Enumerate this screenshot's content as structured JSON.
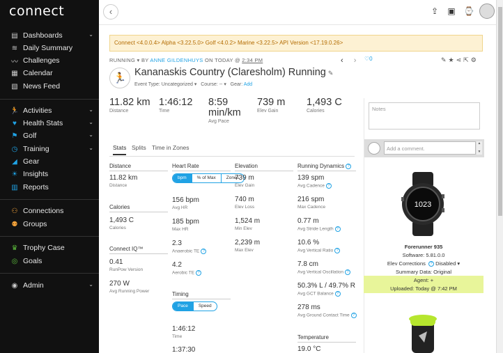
{
  "app": {
    "logo": "connect"
  },
  "sidebar": {
    "groups": [
      [
        {
          "label": "Dashboards",
          "icon": "dashboard-icon",
          "chevron": true
        },
        {
          "label": "Daily Summary",
          "icon": "layers-icon",
          "chevron": false
        },
        {
          "label": "Challenges",
          "icon": "challenges-icon",
          "chevron": false
        },
        {
          "label": "Calendar",
          "icon": "calendar-icon",
          "chevron": false
        },
        {
          "label": "News Feed",
          "icon": "news-icon",
          "chevron": false
        }
      ],
      [
        {
          "label": "Activities",
          "icon": "runner-icon",
          "chevron": true
        },
        {
          "label": "Health Stats",
          "icon": "heart-icon",
          "chevron": true
        },
        {
          "label": "Golf",
          "icon": "golf-flag-icon",
          "chevron": true
        },
        {
          "label": "Training",
          "icon": "stopwatch-icon",
          "chevron": true
        },
        {
          "label": "Gear",
          "icon": "shoe-icon",
          "chevron": false
        },
        {
          "label": "Insights",
          "icon": "bulb-icon",
          "chevron": false
        },
        {
          "label": "Reports",
          "icon": "bar-chart-icon",
          "chevron": false
        }
      ],
      [
        {
          "label": "Connections",
          "icon": "connections-icon",
          "chevron": false
        },
        {
          "label": "Groups",
          "icon": "groups-icon",
          "chevron": false
        }
      ],
      [
        {
          "label": "Trophy Case",
          "icon": "trophy-icon",
          "chevron": false
        },
        {
          "label": "Goals",
          "icon": "goals-icon",
          "chevron": false
        }
      ],
      [
        {
          "label": "Admin",
          "icon": "eye-icon",
          "chevron": true
        }
      ]
    ]
  },
  "banner": {
    "text": "Connect <4.0.0.4> Alpha <3.22.5.0> Golf <4.0.2> Marine <3.22.5> API Version <17.19.0.26>"
  },
  "activity": {
    "type": "RUNNING",
    "by": "BY",
    "author": "ANNE GILDENHUYS",
    "date": "ON TODAY @",
    "time": "2:34 PM",
    "title": "Kananaskis Country (Claresholm) Running",
    "event_label": "Event Type:",
    "event_value": "Uncategorized",
    "course_label": "Course:",
    "course_value": "--",
    "gear_label": "Gear:",
    "gear_value": "Add",
    "likes": "0",
    "prev": "‹",
    "next": "›"
  },
  "summary": [
    {
      "value": "11.82 km",
      "label": "Distance"
    },
    {
      "value": "1:46:12",
      "label": "Time"
    },
    {
      "value": "8:59 min/km",
      "label": "Avg Pace"
    },
    {
      "value": "739 m",
      "label": "Elev Gain"
    },
    {
      "value": "1,493 C",
      "label": "Calories"
    }
  ],
  "tabs": [
    "Stats",
    "Splits",
    "Time in Zones"
  ],
  "sections": {
    "distance": {
      "title": "Distance",
      "stats": [
        {
          "value": "11.82 km",
          "label": "Distance"
        }
      ]
    },
    "calories": {
      "title": "Calories",
      "stats": [
        {
          "value": "1,493 C",
          "label": "Calories"
        }
      ]
    },
    "connect_iq": {
      "title": "Connect IQ™",
      "stats": [
        {
          "value": "0.41",
          "label": "RunPow Version"
        },
        {
          "value": "270 W",
          "label": "Avg Running Power"
        }
      ]
    },
    "heart_rate": {
      "title": "Heart Rate",
      "toggle": [
        "bpm",
        "% of Max",
        "Zones"
      ],
      "stats": [
        {
          "value": "156 bpm",
          "label": "Avg HR"
        },
        {
          "value": "185 bpm",
          "label": "Max HR"
        },
        {
          "value": "2.3",
          "label": "Anaerobic TE"
        },
        {
          "value": "4.2",
          "label": "Aerobic TE"
        }
      ]
    },
    "timing": {
      "title": "Timing",
      "toggle": [
        "Pace",
        "Speed"
      ],
      "stats": [
        {
          "value": "1:46:12",
          "label": "Time"
        },
        {
          "value": "1:37:30",
          "label": ""
        }
      ]
    },
    "elevation": {
      "title": "Elevation",
      "stats": [
        {
          "value": "739 m",
          "label": "Elev Gain"
        },
        {
          "value": "740 m",
          "label": "Elev Loss"
        },
        {
          "value": "1,524 m",
          "label": "Min Elev"
        },
        {
          "value": "2,239 m",
          "label": "Max Elev"
        }
      ]
    },
    "running_dynamics": {
      "title": "Running Dynamics",
      "stats": [
        {
          "value": "139 spm",
          "label": "Avg Cadence"
        },
        {
          "value": "216 spm",
          "label": "Max Cadence"
        },
        {
          "value": "0.77 m",
          "label": "Avg Stride Length"
        },
        {
          "value": "10.6 %",
          "label": "Avg Vertical Ratio"
        },
        {
          "value": "7.8 cm",
          "label": "Avg Vertical Oscillation"
        },
        {
          "value": "50.3% L / 49.7% R",
          "label": "Avg GCT Balance"
        },
        {
          "value": "278 ms",
          "label": "Avg Ground Contact Time"
        }
      ]
    },
    "temperature": {
      "title": "Temperature",
      "stats": [
        {
          "value": "19.0 °C",
          "label": ""
        }
      ]
    }
  },
  "right_panel": {
    "notes_placeholder": "Notes",
    "comment_placeholder": "Add a comment.",
    "watch_time": "1023",
    "device_name": "Forerunner 935",
    "software": "Software: 5.81.0.0",
    "elev_corrections_label": "Elev Corrections",
    "elev_corrections_value": "Disabled",
    "summary_data": "Summary Data: Original",
    "agent": "Agent: +",
    "uploaded": "Uploaded: Today @ 7:42 PM"
  },
  "colors": {
    "accent": "#20a2e4",
    "sidebar_bg": "#111111",
    "banner_bg": "#fdf1d3",
    "agent_bg": "#e8f59a"
  }
}
